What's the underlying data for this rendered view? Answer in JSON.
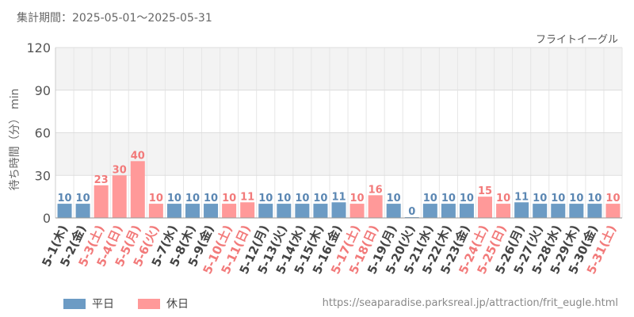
{
  "header": {
    "period": "集計期間：2025-05-01～2025-05-31"
  },
  "attraction_name": "フライトイーグル",
  "footer": {
    "url": "https://seaparadise.parksreal.jp/attraction/frit_eugle.html"
  },
  "legend": [
    {
      "label": "平日",
      "color": "#6c9bc4"
    },
    {
      "label": "休日",
      "color": "#ff9999"
    }
  ],
  "chart_data": {
    "type": "bar",
    "ylabel": "待ち時間（分） min",
    "ylim": [
      0,
      120
    ],
    "yticks": [
      0,
      30,
      60,
      90,
      120
    ],
    "categories": [
      "5-1(木)",
      "5-2(金)",
      "5-3(土)",
      "5-4(日)",
      "5-5(月)",
      "5-6(火)",
      "5-7(水)",
      "5-8(木)",
      "5-9(金)",
      "5-10(土)",
      "5-11(日)",
      "5-12(月)",
      "5-13(火)",
      "5-14(水)",
      "5-15(木)",
      "5-16(金)",
      "5-17(土)",
      "5-18(日)",
      "5-19(月)",
      "5-20(火)",
      "5-21(水)",
      "5-22(木)",
      "5-23(金)",
      "5-24(土)",
      "5-25(日)",
      "5-26(月)",
      "5-27(火)",
      "5-28(水)",
      "5-29(木)",
      "5-30(金)",
      "5-31(土)"
    ],
    "values": [
      10,
      10,
      23,
      30,
      40,
      10,
      10,
      10,
      10,
      10,
      11,
      10,
      10,
      10,
      10,
      11,
      10,
      16,
      10,
      0,
      10,
      10,
      10,
      15,
      10,
      11,
      10,
      10,
      10,
      10,
      10
    ],
    "day_type": [
      "平日",
      "平日",
      "休日",
      "休日",
      "休日",
      "休日",
      "平日",
      "平日",
      "平日",
      "休日",
      "休日",
      "平日",
      "平日",
      "平日",
      "平日",
      "平日",
      "休日",
      "休日",
      "平日",
      "平日",
      "平日",
      "平日",
      "平日",
      "休日",
      "休日",
      "平日",
      "平日",
      "平日",
      "平日",
      "平日",
      "休日"
    ],
    "colors": {
      "平日": "#6c9bc4",
      "休日": "#ff9999"
    },
    "label_colors": {
      "平日": "#5b87b3",
      "休日": "#f27a7a"
    },
    "grid": true,
    "legend_position": "bottom-left"
  }
}
